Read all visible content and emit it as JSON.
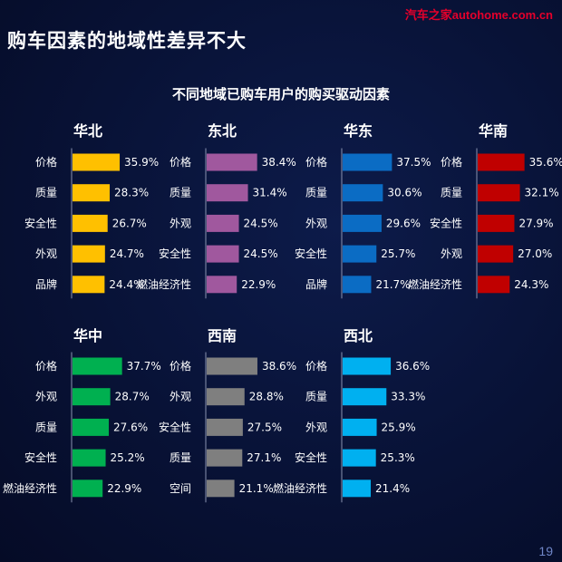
{
  "header": {
    "title": "购车因素的地域性差异不大",
    "watermark": "汽车之家autohome.com.cn",
    "page_number": "19"
  },
  "colors": {
    "华北": "#ffc000",
    "东北": "#a0589e",
    "华东": "#0b6cc4",
    "华南": "#c00000",
    "华中": "#00b050",
    "西南": "#7f7f7f",
    "西北": "#00b0f0"
  },
  "chart_data": {
    "type": "bar",
    "orientation": "horizontal",
    "title": "不同地域已购车用户的购买驱动因素",
    "value_unit": "%",
    "charts": [
      {
        "region": "华北",
        "categories": [
          "价格",
          "质量",
          "安全性",
          "外观",
          "品牌"
        ],
        "values": [
          35.9,
          28.3,
          26.7,
          24.7,
          24.4
        ],
        "labels": [
          "35.9%",
          "28.3%",
          "26.7%",
          "24.7%",
          "24.4%"
        ]
      },
      {
        "region": "东北",
        "categories": [
          "价格",
          "质量",
          "外观",
          "安全性",
          "燃油经济性"
        ],
        "values": [
          38.4,
          31.4,
          24.5,
          24.5,
          22.9
        ],
        "labels": [
          "38.4%",
          "31.4%",
          "24.5%",
          "24.5%",
          "22.9%"
        ]
      },
      {
        "region": "华东",
        "categories": [
          "价格",
          "质量",
          "外观",
          "安全性",
          "品牌"
        ],
        "values": [
          37.5,
          30.6,
          29.6,
          25.7,
          21.7
        ],
        "labels": [
          "37.5%",
          "30.6%",
          "29.6%",
          "25.7%",
          "21.7%"
        ]
      },
      {
        "region": "华南",
        "categories": [
          "价格",
          "质量",
          "安全性",
          "外观",
          "燃油经济性"
        ],
        "values": [
          35.6,
          32.1,
          27.9,
          27.0,
          24.3
        ],
        "labels": [
          "35.6%",
          "32.1%",
          "27.9%",
          "27.0%",
          "24.3%"
        ]
      },
      {
        "region": "华中",
        "categories": [
          "价格",
          "外观",
          "质量",
          "安全性",
          "燃油经济性"
        ],
        "values": [
          37.7,
          28.7,
          27.6,
          25.2,
          22.9
        ],
        "labels": [
          "37.7%",
          "28.7%",
          "27.6%",
          "25.2%",
          "22.9%"
        ]
      },
      {
        "region": "西南",
        "categories": [
          "价格",
          "外观",
          "安全性",
          "质量",
          "空间"
        ],
        "values": [
          38.6,
          28.8,
          27.5,
          27.1,
          21.1
        ],
        "labels": [
          "38.6%",
          "28.8%",
          "27.5%",
          "27.1%",
          "21.1%"
        ]
      },
      {
        "region": "西北",
        "categories": [
          "价格",
          "质量",
          "外观",
          "安全性",
          "燃油经济性"
        ],
        "values": [
          36.6,
          33.3,
          25.9,
          25.3,
          21.4
        ],
        "labels": [
          "36.6%",
          "33.3%",
          "25.9%",
          "25.3%",
          "21.4%"
        ]
      }
    ]
  }
}
